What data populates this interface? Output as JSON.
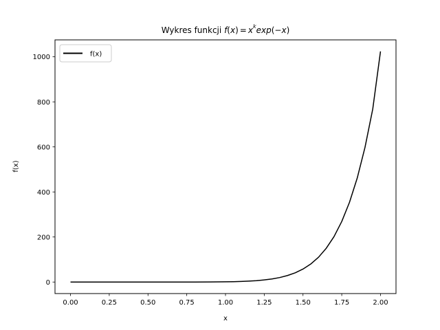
{
  "chart_data": {
    "type": "line",
    "title": "Wykres funkcji",
    "title_math": {
      "f": "f",
      "lp": "(",
      "x": "x",
      "rp": ")",
      "eq": "=",
      "x2": "x",
      "k": "k",
      "exp": "exp",
      "lp2": "(",
      "minus": "−",
      "x3": "x",
      "rp2": ")"
    },
    "xlabel": "x",
    "ylabel": "f(x)",
    "xlim": [
      -0.1,
      2.1
    ],
    "ylim": [
      -51.2,
      1075.2
    ],
    "x_ticks": [
      0.0,
      0.25,
      0.5,
      0.75,
      1.0,
      1.25,
      1.5,
      1.75,
      2.0
    ],
    "x_tick_labels": [
      "0.00",
      "0.25",
      "0.50",
      "0.75",
      "1.00",
      "1.25",
      "1.50",
      "1.75",
      "2.00"
    ],
    "y_ticks": [
      0,
      200,
      400,
      600,
      800,
      1000
    ],
    "y_tick_labels": [
      "0",
      "200",
      "400",
      "600",
      "800",
      "1000"
    ],
    "grid": false,
    "legend": {
      "position": "top-left"
    },
    "series": [
      {
        "name": "f(x)",
        "color": "#000000",
        "x": [
          0.0,
          0.1,
          0.2,
          0.3,
          0.4,
          0.5,
          0.6,
          0.7,
          0.8,
          0.9,
          1.0,
          1.05,
          1.1,
          1.15,
          1.2,
          1.25,
          1.3,
          1.35,
          1.4,
          1.45,
          1.5,
          1.55,
          1.6,
          1.65,
          1.7,
          1.75,
          1.8,
          1.85,
          1.9,
          1.95,
          2.0
        ],
        "y": [
          0.0,
          0.0,
          0.0,
          0.0,
          0.0,
          0.0,
          0.0,
          0.03,
          0.1,
          0.35,
          1.0,
          1.6,
          2.6,
          4.1,
          6.2,
          9.3,
          13.8,
          20.0,
          28.9,
          41.0,
          57.7,
          80.0,
          110.0,
          150.0,
          201.6,
          268.7,
          354.0,
          462.0,
          598.0,
          768.0,
          1024.0
        ]
      }
    ]
  }
}
